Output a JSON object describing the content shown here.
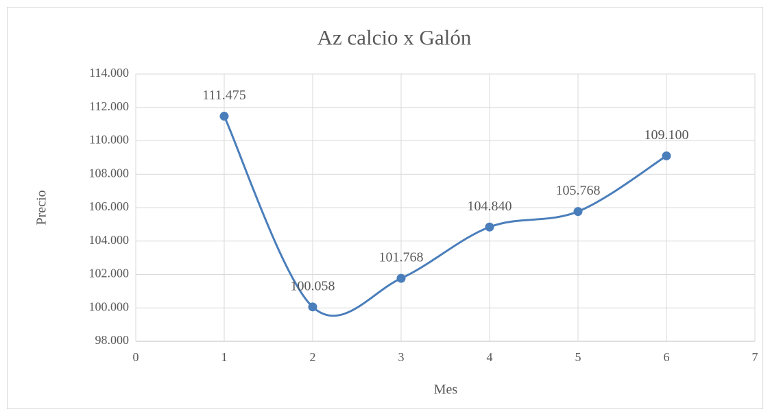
{
  "chart_data": {
    "type": "line",
    "title": "Az calcio x Galón",
    "x_label": "Mes",
    "y_label": "Precio",
    "x": [
      1,
      2,
      3,
      4,
      5,
      6
    ],
    "series": [
      {
        "name": "Precio",
        "color": "#4a7ebb",
        "values": [
          111475,
          100058,
          101768,
          104840,
          105768,
          109100
        ],
        "value_labels": [
          "111.475",
          "100.058",
          "101.768",
          "104.840",
          "105.768",
          "109.100"
        ]
      }
    ],
    "xlim": [
      0,
      7
    ],
    "xticks": [
      0,
      1,
      2,
      3,
      4,
      5,
      6,
      7
    ],
    "ylim": [
      98000,
      114000
    ],
    "yticks": [
      {
        "value": 98000,
        "label": "98.000"
      },
      {
        "value": 100000,
        "label": "100.000"
      },
      {
        "value": 102000,
        "label": "102.000"
      },
      {
        "value": 104000,
        "label": "104.000"
      },
      {
        "value": 106000,
        "label": "106.000"
      },
      {
        "value": 108000,
        "label": "108.000"
      },
      {
        "value": 110000,
        "label": "110.000"
      },
      {
        "value": 112000,
        "label": "112.000"
      },
      {
        "value": 114000,
        "label": "114.000"
      }
    ],
    "grid": true,
    "smooth": true
  }
}
